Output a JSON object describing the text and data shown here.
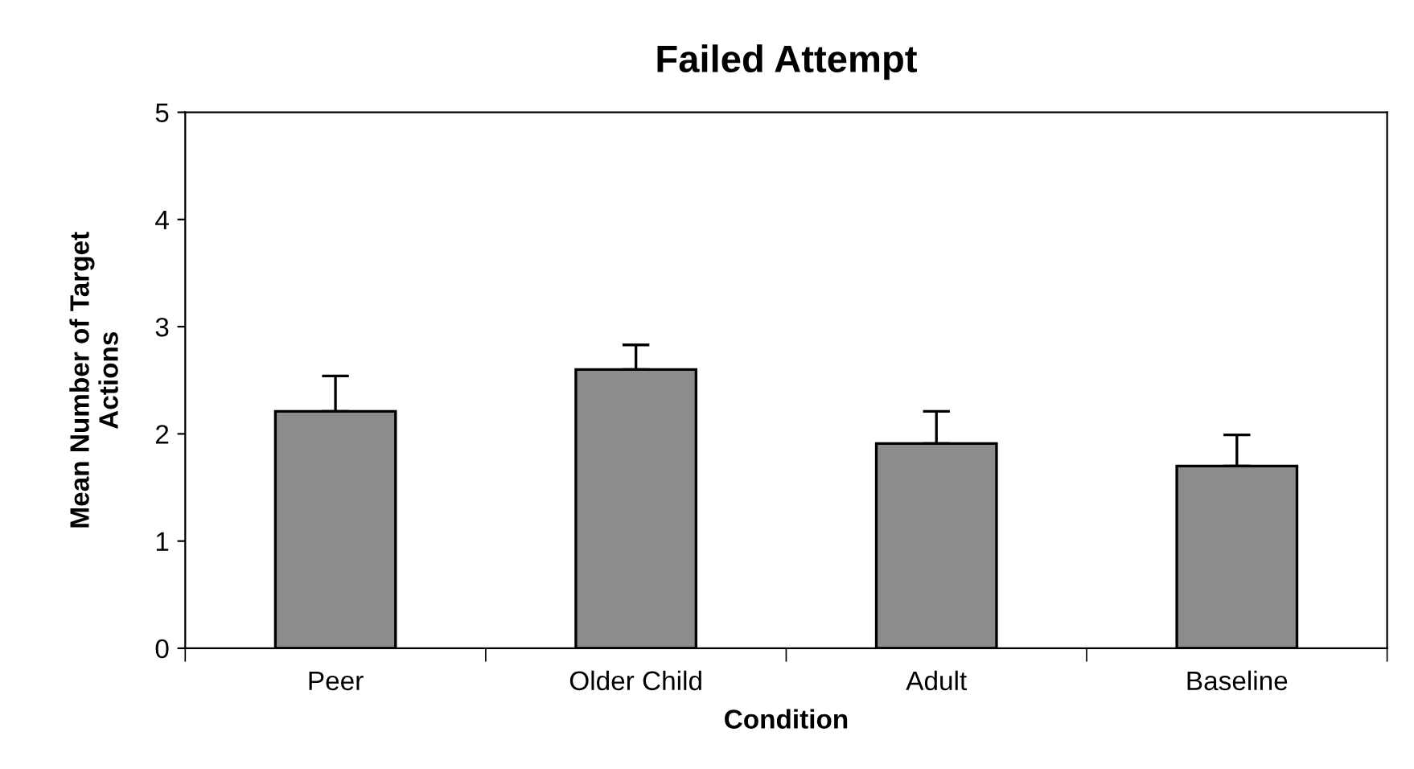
{
  "chart_data": {
    "type": "bar",
    "title": "Failed Attempt",
    "xlabel": "Condition",
    "ylabel": "Mean Number of Target\nActions",
    "categories": [
      "Peer",
      "Older Child",
      "Adult",
      "Baseline"
    ],
    "values": [
      2.21,
      2.6,
      1.91,
      1.7
    ],
    "errors": [
      [
        2.21,
        2.54
      ],
      [
        2.6,
        2.83
      ],
      [
        1.91,
        2.21
      ],
      [
        1.7,
        1.99
      ]
    ],
    "color": "#8c8c8c",
    "ylim": [
      0,
      5
    ],
    "yticks": [
      0,
      1,
      2,
      3,
      4,
      5
    ],
    "grid": false,
    "legend": false
  }
}
